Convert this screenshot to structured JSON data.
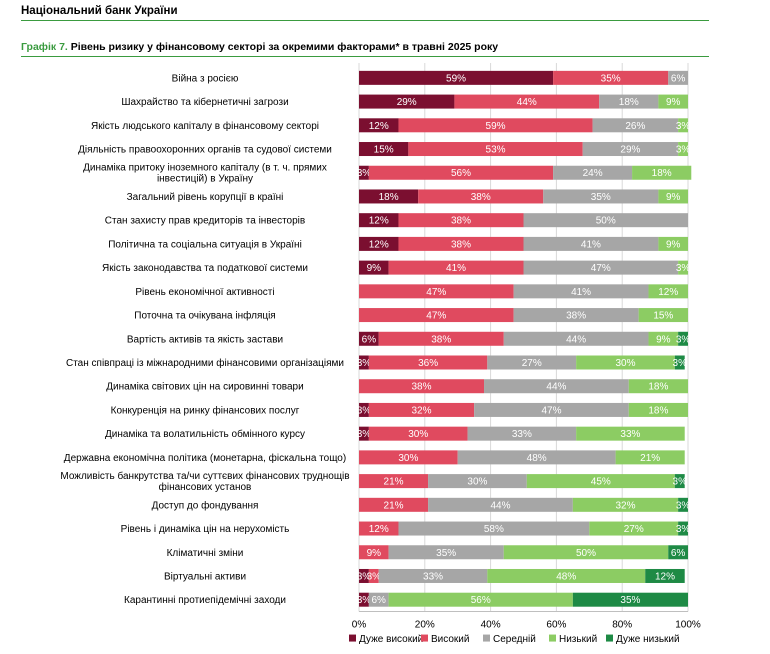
{
  "header": {
    "bank_name": "Національний банк України"
  },
  "figure": {
    "number_label": "Графік 7.",
    "title_text": " Рівень ризику у фінансовому секторі за окремими факторами* в травні 2025 року"
  },
  "colors": {
    "very_high": "#7b0f30",
    "high": "#e04a5f",
    "medium": "#a6a6a6",
    "low": "#8ccc63",
    "very_low": "#1e8a45",
    "rule": "#3a9b3f"
  },
  "chart_data": {
    "type": "bar",
    "orientation": "horizontal",
    "stacked": true,
    "title": "Рівень ризику у фінансовому секторі за окремими факторами* в травні 2025 року",
    "xlim": [
      0,
      100
    ],
    "x_ticks": [
      "0%",
      "20%",
      "40%",
      "60%",
      "80%",
      "100%"
    ],
    "legend_position": "bottom",
    "categories": [
      "Війна з росією",
      "Шахрайство та кібернетичні загрози",
      "Якість людського капіталу в фінансовому секторі",
      "Діяльність правоохоронних органів та судової системи",
      "Динаміка притоку іноземного капіталу (в т. ч. прямих інвестицій) в Україну",
      "Загальний рівень корупції в країні",
      "Стан захисту прав кредиторів та інвесторів",
      "Політична та соціальна ситуація в Україні",
      "Якість законодавства та податкової системи",
      "Рівень економічної активності",
      "Поточна та очікувана інфляція",
      "Вартість активів та якість застави",
      "Стан співпраці із міжнародними фінансовими організаціями",
      "Динаміка світових цін на сировинні товари",
      "Конкуренція на ринку фінансових послуг",
      "Динаміка та волатильність обмінного курсу",
      "Державна економічна політика (монетарна, фіскальна тощо)",
      "Можливість банкрутства та/чи суттєвих фінансових труднощів фінансових установ",
      "Доступ до фондування",
      "Рівень і динаміка цін на нерухомість",
      "Кліматичні зміни",
      "Віртуальні активи",
      "Карантинні протиепідемічні заходи"
    ],
    "series": [
      {
        "name": "Дуже високий",
        "key": "very_high",
        "values": [
          59,
          29,
          12,
          15,
          3,
          18,
          12,
          12,
          9,
          0,
          0,
          6,
          3,
          0,
          3,
          3,
          0,
          0,
          0,
          0,
          0,
          3,
          3
        ]
      },
      {
        "name": "Високий",
        "key": "high",
        "values": [
          35,
          44,
          59,
          53,
          56,
          38,
          38,
          38,
          41,
          47,
          47,
          38,
          36,
          38,
          32,
          30,
          30,
          21,
          21,
          12,
          9,
          3,
          0
        ]
      },
      {
        "name": "Середній",
        "key": "medium",
        "values": [
          6,
          18,
          26,
          29,
          24,
          35,
          50,
          41,
          47,
          41,
          38,
          44,
          27,
          44,
          47,
          33,
          48,
          30,
          44,
          58,
          35,
          33,
          6
        ]
      },
      {
        "name": "Низький",
        "key": "low",
        "values": [
          0,
          9,
          3,
          3,
          18,
          9,
          0,
          9,
          3,
          12,
          15,
          9,
          30,
          18,
          18,
          33,
          21,
          45,
          32,
          27,
          50,
          48,
          56
        ]
      },
      {
        "name": "Дуже низький",
        "key": "very_low",
        "values": [
          0,
          0,
          0,
          0,
          0,
          0,
          0,
          0,
          0,
          0,
          0,
          3,
          3,
          0,
          0,
          0,
          0,
          3,
          3,
          3,
          6,
          12,
          35
        ]
      }
    ]
  }
}
